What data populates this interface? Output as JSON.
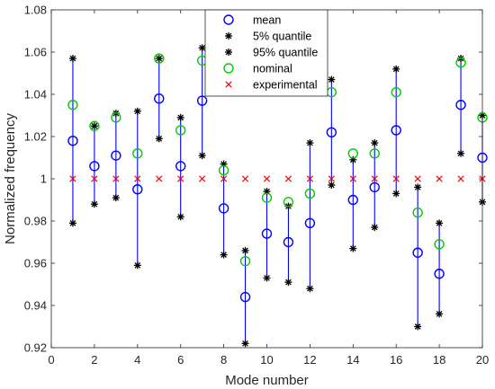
{
  "chart_data": {
    "type": "scatter",
    "xlabel": "Mode number",
    "ylabel": "Normalized frequency",
    "xlim": [
      0,
      20
    ],
    "ylim": [
      0.92,
      1.08
    ],
    "xticks": [
      0,
      2,
      4,
      6,
      8,
      10,
      12,
      14,
      16,
      18,
      20
    ],
    "yticks": [
      0.92,
      0.94,
      0.96,
      0.98,
      1,
      1.02,
      1.04,
      1.06,
      1.08
    ],
    "ytick_labels": [
      "0.92",
      "0.94",
      "0.96",
      "0.98",
      "1",
      "1.02",
      "1.04",
      "1.06",
      "1.08"
    ],
    "legend_position": "top-center",
    "grid": false,
    "x": [
      1,
      2,
      3,
      4,
      5,
      6,
      7,
      8,
      9,
      10,
      11,
      12,
      13,
      14,
      15,
      16,
      17,
      18,
      19,
      20
    ],
    "series": [
      {
        "name": "mean",
        "marker": "circle",
        "color": "#0000ff",
        "values": [
          1.018,
          1.006,
          1.011,
          0.995,
          1.038,
          1.006,
          1.037,
          0.986,
          0.944,
          0.974,
          0.97,
          0.979,
          1.022,
          0.99,
          0.996,
          1.023,
          0.965,
          0.955,
          1.035,
          1.01
        ]
      },
      {
        "name": "5% quantile",
        "marker": "star",
        "color": "#000000",
        "values": [
          0.979,
          0.988,
          0.991,
          0.959,
          1.019,
          0.982,
          1.011,
          0.964,
          0.922,
          0.953,
          0.951,
          0.948,
          0.997,
          0.967,
          0.977,
          0.993,
          0.93,
          0.936,
          1.012,
          0.989
        ]
      },
      {
        "name": "95% quantile",
        "marker": "star",
        "color": "#000000",
        "values": [
          1.057,
          1.025,
          1.031,
          1.032,
          1.057,
          1.029,
          1.062,
          1.007,
          0.966,
          0.994,
          0.987,
          1.017,
          1.047,
          1.009,
          1.017,
          1.052,
          0.996,
          0.979,
          1.057,
          1.03
        ]
      },
      {
        "name": "nominal",
        "marker": "circle",
        "color": "#00cc00",
        "values": [
          1.035,
          1.025,
          1.029,
          1.012,
          1.057,
          1.023,
          1.056,
          1.004,
          0.961,
          0.991,
          0.989,
          0.993,
          1.041,
          1.012,
          1.012,
          1.041,
          0.984,
          0.969,
          1.055,
          1.029
        ]
      },
      {
        "name": "experimental",
        "marker": "x",
        "color": "#ff0000",
        "values": [
          1,
          1,
          1,
          1,
          1,
          1,
          1,
          1,
          1,
          1,
          1,
          1,
          1,
          1,
          1,
          1,
          1,
          1,
          1,
          1
        ]
      }
    ],
    "range_line_color": "#0000ff"
  }
}
